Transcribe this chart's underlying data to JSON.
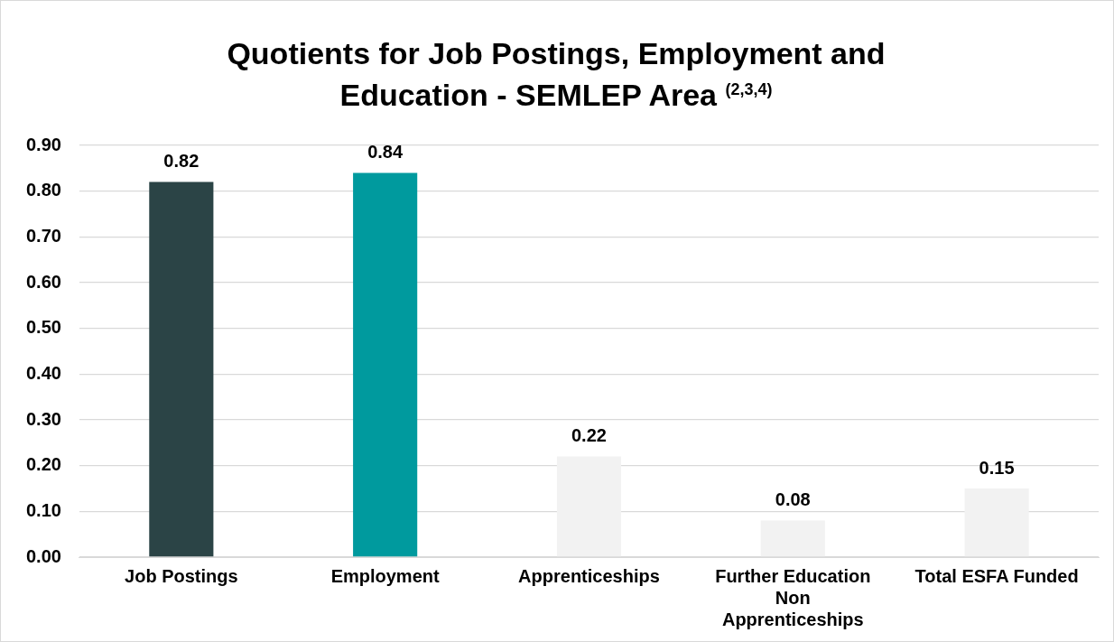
{
  "chart_data": {
    "type": "bar",
    "title": "Quotients for Job Postings, Employment and Education - SEMLEP Area $^{(2,3,4)}$",
    "categories": [
      "Job Postings",
      "Employment",
      "Apprenticeships",
      "Further Education Non Apprenticeships",
      "Total ESFA Funded"
    ],
    "values": [
      0.82,
      0.84,
      0.22,
      0.08,
      0.15
    ],
    "colors": [
      "#2b4446",
      "#009a9e",
      "#f2f2f2",
      "#f2f2f2",
      "#f2f2f2"
    ],
    "ylim": [
      0,
      0.9
    ],
    "yticks": [
      {
        "value": 0,
        "label": "0.00"
      },
      {
        "value": 0.1,
        "label": "0.10"
      },
      {
        "value": 0.2,
        "label": "0.20"
      },
      {
        "value": 0.3,
        "label": "0.30"
      },
      {
        "value": 0.4,
        "label": "0.40"
      },
      {
        "value": 0.5,
        "label": "0.50"
      },
      {
        "value": 0.6,
        "label": "0.60"
      },
      {
        "value": 0.7,
        "label": "0.70"
      },
      {
        "value": 0.8,
        "label": "0.80"
      },
      {
        "value": 0.9,
        "label": "0.90"
      }
    ],
    "grid": "y",
    "data_labels": true
  }
}
